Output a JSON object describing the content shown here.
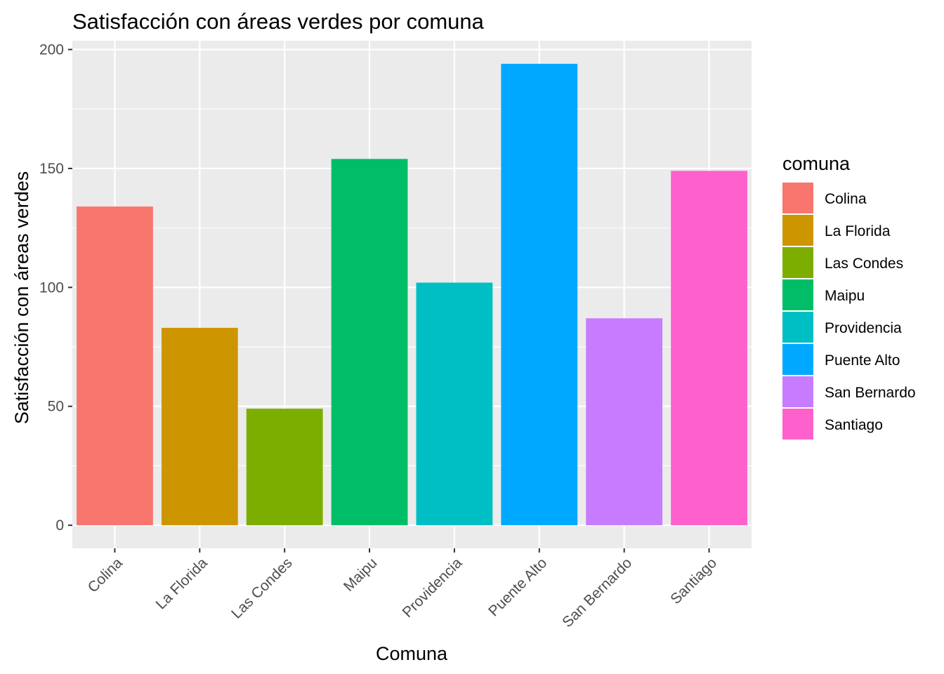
{
  "chart_data": {
    "type": "bar",
    "title": "Satisfacción con áreas verdes por comuna",
    "xlabel": "Comuna",
    "ylabel": "Satisfacción con áreas verdes",
    "categories": [
      "Colina",
      "La Florida",
      "Las Condes",
      "Maipu",
      "Providencia",
      "Puente Alto",
      "San Bernardo",
      "Santiago"
    ],
    "values": [
      134,
      83,
      49,
      154,
      102,
      194,
      87,
      149
    ],
    "colors": [
      "#F8766D",
      "#CD9600",
      "#7CAE00",
      "#00BE67",
      "#00BFC4",
      "#00A9FF",
      "#C77CFF",
      "#FF61CC"
    ],
    "ylim": [
      -9.7,
      203.7
    ],
    "yticks": [
      0,
      50,
      100,
      150,
      200
    ],
    "ytick_labels": [
      "0",
      "50",
      "100",
      "150",
      "200"
    ],
    "grid": true,
    "panel_background": "#EBEBEB",
    "legend": {
      "title": "comuna",
      "placement": "right",
      "entries": [
        "Colina",
        "La Florida",
        "Las Condes",
        "Maipu",
        "Providencia",
        "Puente Alto",
        "San Bernardo",
        "Santiago"
      ]
    }
  }
}
